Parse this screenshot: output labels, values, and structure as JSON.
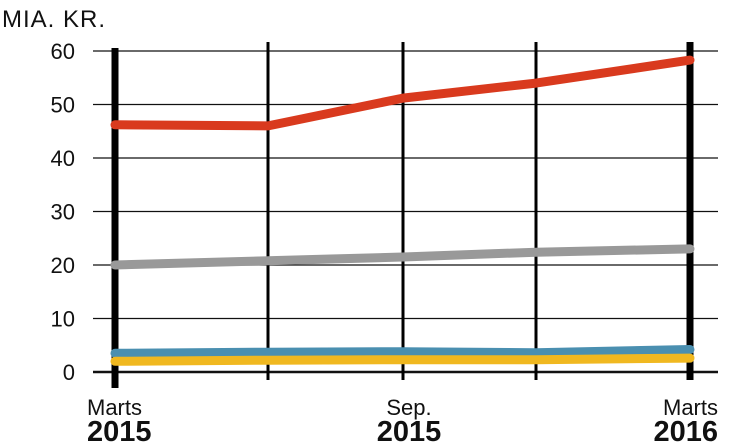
{
  "chart_data": {
    "type": "line",
    "unit_label": "MIA. KR.",
    "ylim": [
      0,
      60
    ],
    "yticks": [
      0,
      10,
      20,
      30,
      40,
      50,
      60
    ],
    "x": [
      0,
      1,
      2,
      3,
      4
    ],
    "xlabels": [
      {
        "line1": "Marts",
        "line2": "2015"
      },
      {
        "line1": "",
        "line2": ""
      },
      {
        "line1": "Sep.",
        "line2": "2015"
      },
      {
        "line1": "",
        "line2": ""
      },
      {
        "line1": "Marts",
        "line2": "2016"
      }
    ],
    "grid": true,
    "series": [
      {
        "color": "#d93a1e",
        "values": [
          46.2,
          46.0,
          51.2,
          54.0,
          58.3
        ]
      },
      {
        "color": "#999999",
        "values": [
          20.0,
          20.8,
          21.5,
          22.4,
          23.0
        ]
      },
      {
        "color": "#4a8fb0",
        "values": [
          3.5,
          3.7,
          3.8,
          3.6,
          4.2
        ]
      },
      {
        "color": "#f0b820",
        "values": [
          2.0,
          2.2,
          2.3,
          2.3,
          2.6
        ]
      }
    ]
  }
}
